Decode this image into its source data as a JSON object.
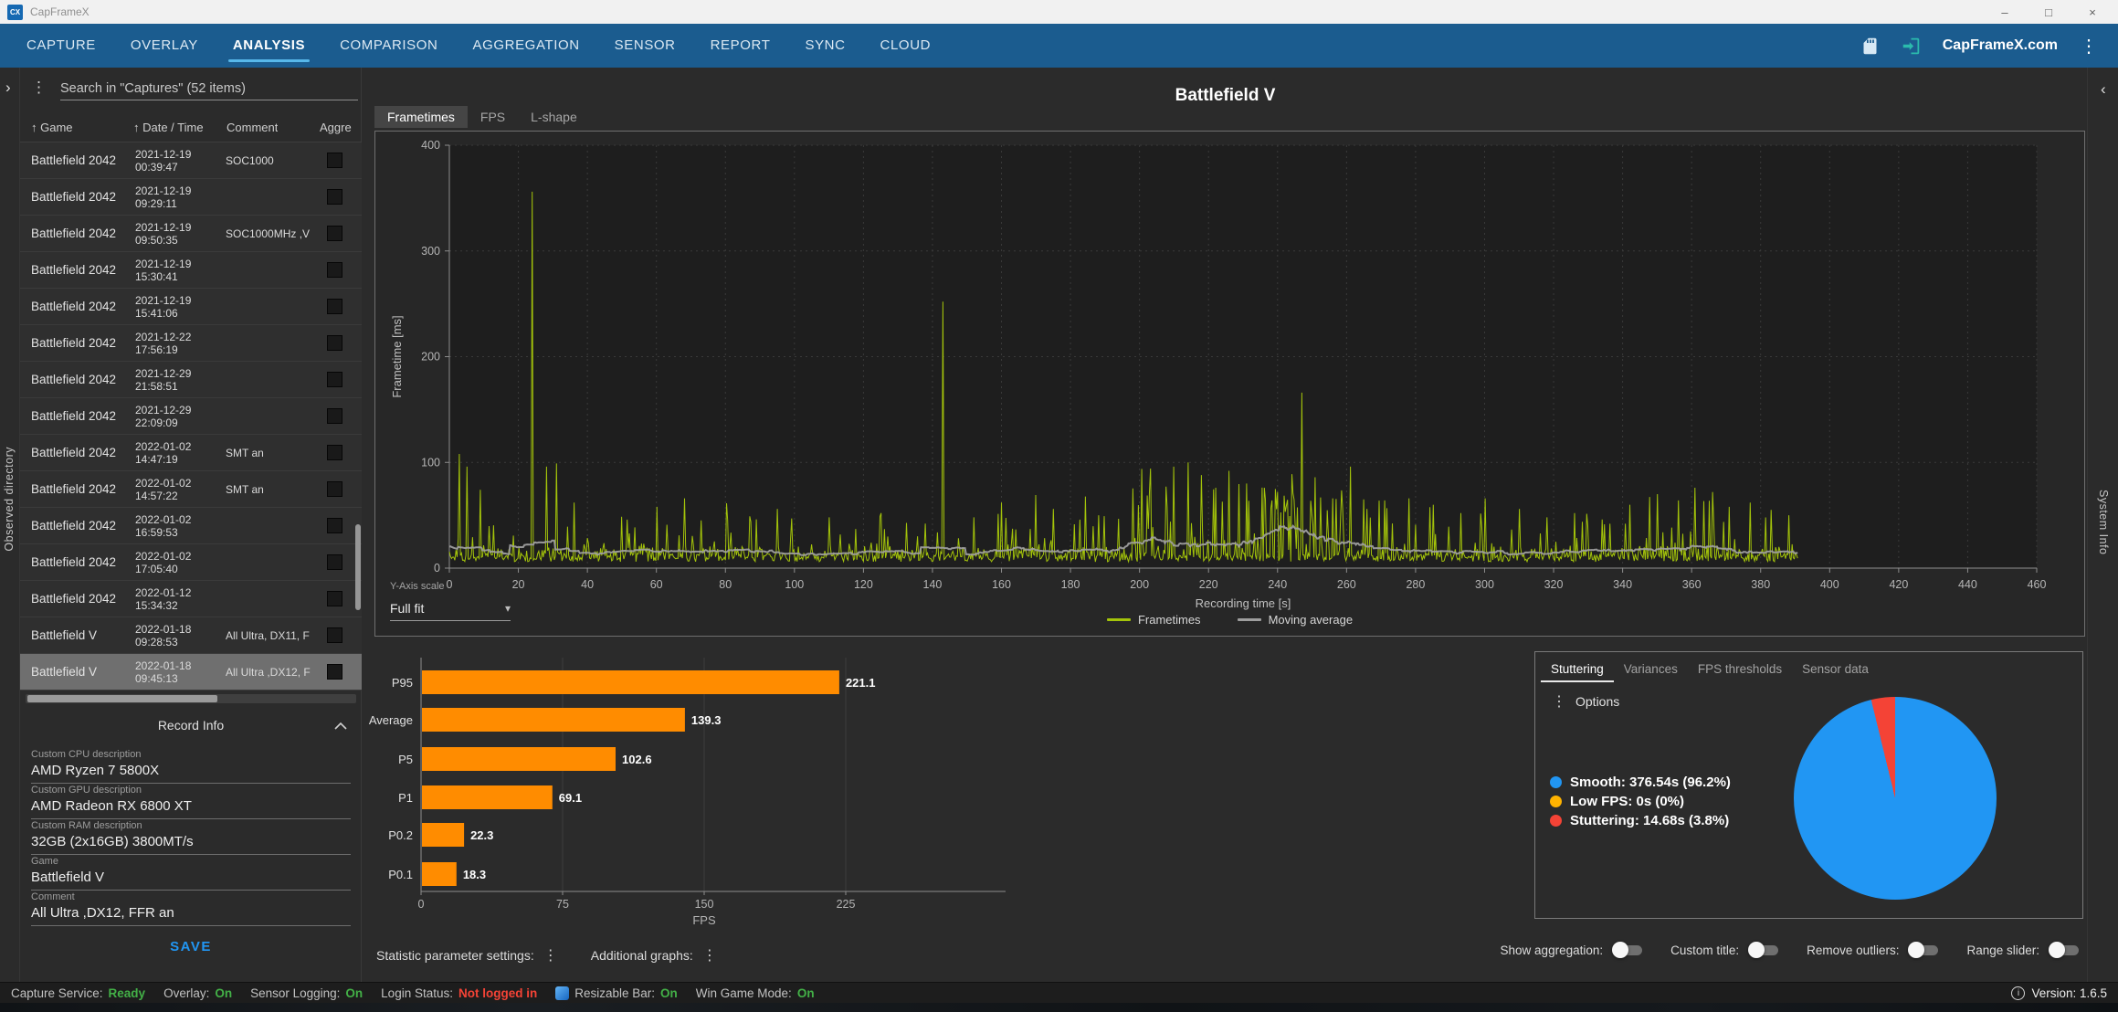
{
  "window": {
    "title": "CapFrameX",
    "logo": "CX",
    "controls": {
      "minimize": "–",
      "maximize": "□",
      "close": "×"
    }
  },
  "navbar": {
    "tabs": [
      "CAPTURE",
      "OVERLAY",
      "ANALYSIS",
      "COMPARISON",
      "AGGREGATION",
      "SENSOR",
      "REPORT",
      "SYNC",
      "CLOUD"
    ],
    "active_tab": "ANALYSIS",
    "site_link": "CapFrameX.com"
  },
  "edge_labels": {
    "left": "Observed directory",
    "right": "System Info"
  },
  "sidebar": {
    "search_text": "Search in \"Captures\" (52 items)",
    "table": {
      "columns": [
        {
          "label": "Game",
          "sortable": true
        },
        {
          "label": "Date / Time",
          "sortable": true
        },
        {
          "label": "Comment",
          "sortable": false
        },
        {
          "label": "Aggre",
          "sortable": false
        }
      ],
      "rows": [
        {
          "game": "Battlefield 2042",
          "date": "2021-12-19",
          "time": "00:39:47",
          "comment": "SOC1000",
          "selected": false
        },
        {
          "game": "Battlefield 2042",
          "date": "2021-12-19",
          "time": "09:29:11",
          "comment": "",
          "selected": false
        },
        {
          "game": "Battlefield 2042",
          "date": "2021-12-19",
          "time": "09:50:35",
          "comment": "SOC1000MHz ,V",
          "selected": false
        },
        {
          "game": "Battlefield 2042",
          "date": "2021-12-19",
          "time": "15:30:41",
          "comment": "",
          "selected": false
        },
        {
          "game": "Battlefield 2042",
          "date": "2021-12-19",
          "time": "15:41:06",
          "comment": "",
          "selected": false
        },
        {
          "game": "Battlefield 2042",
          "date": "2021-12-22",
          "time": "17:56:19",
          "comment": "",
          "selected": false
        },
        {
          "game": "Battlefield 2042",
          "date": "2021-12-29",
          "time": "21:58:51",
          "comment": "",
          "selected": false
        },
        {
          "game": "Battlefield 2042",
          "date": "2021-12-29",
          "time": "22:09:09",
          "comment": "",
          "selected": false
        },
        {
          "game": "Battlefield 2042",
          "date": "2022-01-02",
          "time": "14:47:19",
          "comment": "SMT an",
          "selected": false
        },
        {
          "game": "Battlefield 2042",
          "date": "2022-01-02",
          "time": "14:57:22",
          "comment": "SMT an",
          "selected": false
        },
        {
          "game": "Battlefield 2042",
          "date": "2022-01-02",
          "time": "16:59:53",
          "comment": "",
          "selected": false
        },
        {
          "game": "Battlefield 2042",
          "date": "2022-01-02",
          "time": "17:05:40",
          "comment": "",
          "selected": false
        },
        {
          "game": "Battlefield 2042",
          "date": "2022-01-12",
          "time": "15:34:32",
          "comment": "",
          "selected": false
        },
        {
          "game": "Battlefield V",
          "date": "2022-01-18",
          "time": "09:28:53",
          "comment": "All Ultra, DX11, F",
          "selected": false
        },
        {
          "game": "Battlefield V",
          "date": "2022-01-18",
          "time": "09:45:13",
          "comment": "All Ultra ,DX12, F",
          "selected": true
        }
      ]
    },
    "record_info": {
      "title": "Record Info",
      "fields": [
        {
          "label": "Custom CPU description",
          "value": "AMD Ryzen 7 5800X"
        },
        {
          "label": "Custom GPU description",
          "value": "AMD Radeon RX 6800 XT"
        },
        {
          "label": "Custom RAM description",
          "value": "32GB (2x16GB) 3800MT/s"
        },
        {
          "label": "Game",
          "value": "Battlefield V"
        },
        {
          "label": "Comment",
          "value": "All Ultra ,DX12, FFR an"
        }
      ],
      "save_label": "SAVE"
    }
  },
  "main": {
    "title": "Battlefield V",
    "chart_tabs": [
      "Frametimes",
      "FPS",
      "L-shape"
    ],
    "active_chart_tab": "Frametimes",
    "yaxis_scale_label": "Y-Axis scale",
    "yaxis_scale_value": "Full fit",
    "settings": {
      "statistic_label": "Statistic parameter settings:",
      "additional_label": "Additional graphs:"
    },
    "analysis_tabs": [
      "Stuttering",
      "Variances",
      "FPS thresholds",
      "Sensor data"
    ],
    "active_analysis_tab": "Stuttering",
    "options_label": "Options",
    "toggles": [
      "Show aggregation:",
      "Custom title:",
      "Remove outliers:",
      "Range slider:"
    ]
  },
  "chart_data": [
    {
      "id": "frametimes",
      "type": "line",
      "title": "Frametimes",
      "xlabel": "Recording time [s]",
      "ylabel": "Frametime [ms]",
      "xlim": [
        0,
        460
      ],
      "ylim": [
        0,
        400
      ],
      "x_tick_step": 20,
      "y_tick_step": 100,
      "duration_s": 391,
      "legend": [
        "Frametimes",
        "Moving average"
      ],
      "legend_position": "bottom",
      "grid": true,
      "baseline_ms": [
        6,
        20
      ],
      "major_spikes": [
        [
          3,
          108
        ],
        [
          5,
          96
        ],
        [
          9,
          74
        ],
        [
          24,
          356
        ],
        [
          28,
          96
        ],
        [
          31,
          99
        ],
        [
          36,
          62
        ],
        [
          60,
          58
        ],
        [
          68,
          66
        ],
        [
          95,
          56
        ],
        [
          110,
          48
        ],
        [
          125,
          52
        ],
        [
          143,
          252
        ],
        [
          152,
          48
        ],
        [
          160,
          62
        ],
        [
          175,
          56
        ],
        [
          188,
          50
        ],
        [
          203,
          72
        ],
        [
          210,
          96
        ],
        [
          214,
          100
        ],
        [
          218,
          88
        ],
        [
          222,
          76
        ],
        [
          226,
          92
        ],
        [
          231,
          80
        ],
        [
          236,
          76
        ],
        [
          240,
          72
        ],
        [
          247,
          166
        ],
        [
          251,
          86
        ],
        [
          256,
          66
        ],
        [
          261,
          96
        ],
        [
          266,
          56
        ],
        [
          271,
          64
        ],
        [
          278,
          66
        ],
        [
          285,
          60
        ],
        [
          293,
          52
        ],
        [
          300,
          66
        ],
        [
          310,
          56
        ],
        [
          318,
          48
        ],
        [
          326,
          52
        ],
        [
          334,
          46
        ],
        [
          342,
          60
        ],
        [
          350,
          70
        ],
        [
          356,
          64
        ],
        [
          361,
          76
        ],
        [
          366,
          72
        ],
        [
          371,
          58
        ],
        [
          377,
          62
        ],
        [
          383,
          55
        ],
        [
          388,
          50
        ]
      ]
    },
    {
      "id": "fps_percentiles",
      "type": "bar",
      "orientation": "horizontal",
      "categories": [
        "P95",
        "Average",
        "P5",
        "P1",
        "P0.2",
        "P0.1"
      ],
      "values": [
        221.1,
        139.3,
        102.6,
        69.1,
        22.3,
        18.3
      ],
      "value_labels": [
        "221.1",
        "139.3",
        "102.6",
        "69.1",
        "22.3",
        "18.3"
      ],
      "xlabel": "FPS",
      "x_ticks": [
        0,
        75,
        150,
        225
      ],
      "xlim": [
        0,
        310
      ]
    },
    {
      "id": "stuttering_pie",
      "type": "pie",
      "slices": [
        {
          "label": "Smooth",
          "seconds": 376.54,
          "pct": 96.2,
          "color": "#2196f3",
          "text": "Smooth:  376.54s (96.2%)"
        },
        {
          "label": "Low FPS",
          "seconds": 0,
          "pct": 0,
          "color": "#ffb300",
          "text": "Low FPS:  0s (0%)"
        },
        {
          "label": "Stuttering",
          "seconds": 14.68,
          "pct": 3.8,
          "color": "#f44336",
          "text": "Stuttering:  14.68s (3.8%)"
        }
      ]
    }
  ],
  "statusbar": {
    "items": [
      {
        "label": "Capture Service:",
        "value": "Ready",
        "value_color": "#43b047"
      },
      {
        "label": "Overlay:",
        "value": "On",
        "value_color": "#43b047"
      },
      {
        "label": "Sensor Logging:",
        "value": "On",
        "value_color": "#43b047"
      },
      {
        "label": "Login Status:",
        "value": "Not logged in",
        "value_color": "#f44336"
      },
      {
        "label": "Resizable Bar:",
        "value": "On",
        "value_color": "#43b047",
        "icon": "resizable-bar-icon"
      },
      {
        "label": "Win Game Mode:",
        "value": "On",
        "value_color": "#43b047"
      }
    ],
    "version": "Version: 1.6.5"
  },
  "colors": {
    "nav_bg": "#1b5c8f",
    "accent": "#57b8ea",
    "frametimes_line": "#a4c40a",
    "moving_average": "#9e9e9e",
    "bar_orange": "#ff8c00",
    "pie_blue": "#2196f3",
    "pie_yellow": "#ffb300",
    "pie_red": "#f44336",
    "save_blue": "#2196f3"
  }
}
